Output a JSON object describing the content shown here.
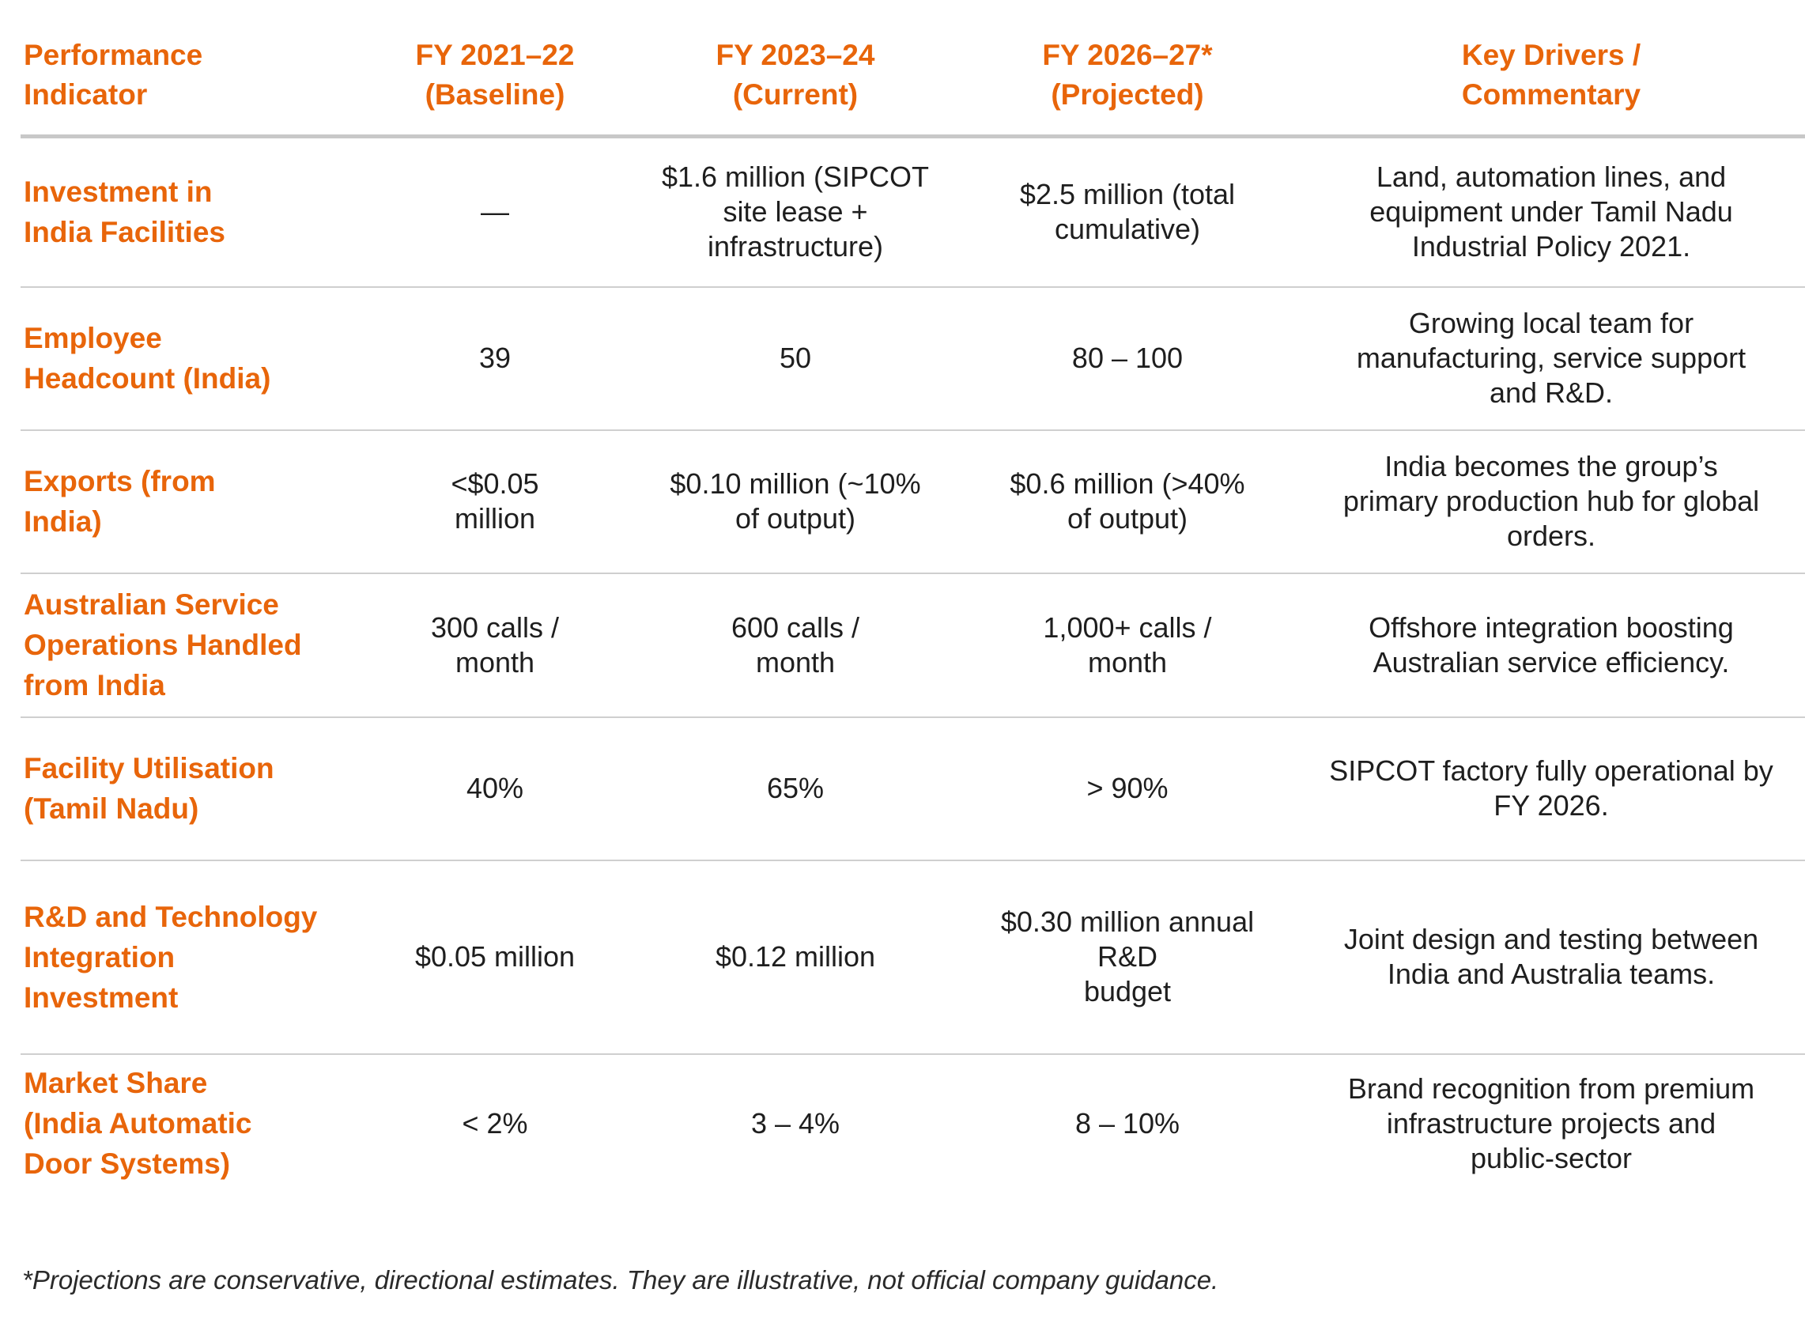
{
  "table": {
    "headers": [
      "Performance\nIndicator",
      "FY 2021–22\n(Baseline)",
      "FY 2023–24\n(Current)",
      "FY 2026–27*\n(Projected)",
      "Key Drivers /\nCommentary"
    ],
    "rows": [
      {
        "indicator": "Investment in\nIndia Facilities",
        "baseline": "—",
        "current": "$1.6 million (SIPCOT\nsite lease +\ninfrastructure)",
        "projected": "$2.5 million (total\ncumulative)",
        "commentary": "Land, automation lines, and\nequipment under Tamil Nadu\nIndustrial Policy 2021."
      },
      {
        "indicator": "Employee\nHeadcount (India)",
        "baseline": "39",
        "current": "50",
        "projected": "80 – 100",
        "commentary": "Growing local team for\nmanufacturing, service support\nand R&D."
      },
      {
        "indicator": "Exports (from\nIndia)",
        "baseline": "<$0.05\nmillion",
        "current": "$0.10 million (~10%\nof output)",
        "projected": "$0.6 million (>40%\nof output)",
        "commentary": "India becomes the group’s\nprimary production hub for global\norders."
      },
      {
        "indicator": "Australian Service\nOperations Handled\nfrom India",
        "baseline": "300 calls /\nmonth",
        "current": "600 calls /\nmonth",
        "projected": "1,000+ calls /\nmonth",
        "commentary": "Offshore integration boosting\nAustralian service efficiency."
      },
      {
        "indicator": "Facility Utilisation\n(Tamil Nadu)",
        "baseline": "40%",
        "current": "65%",
        "projected": "> 90%",
        "commentary": "SIPCOT factory fully operational by\nFY 2026."
      },
      {
        "indicator": "R&D and Technology\nIntegration\nInvestment",
        "baseline": "$0.05 million",
        "current": "$0.12 million",
        "projected": "$0.30 million annual R&D\nbudget",
        "commentary": "Joint design and testing between\nIndia and Australia teams."
      },
      {
        "indicator": "Market Share\n(India Automatic\nDoor Systems)",
        "baseline": "< 2%",
        "current": "3 – 4%",
        "projected": "8 – 10%",
        "commentary": "Brand recognition from premium\ninfrastructure projects and\npublic-sector"
      }
    ]
  },
  "footnote": "*Projections are conservative, directional estimates. They are illustrative, not official company guidance.",
  "colors": {
    "accent": "#e8650a",
    "text": "#1e1e1e",
    "rule": "#cfcfcf",
    "header_rule": "#c8c8c8"
  }
}
